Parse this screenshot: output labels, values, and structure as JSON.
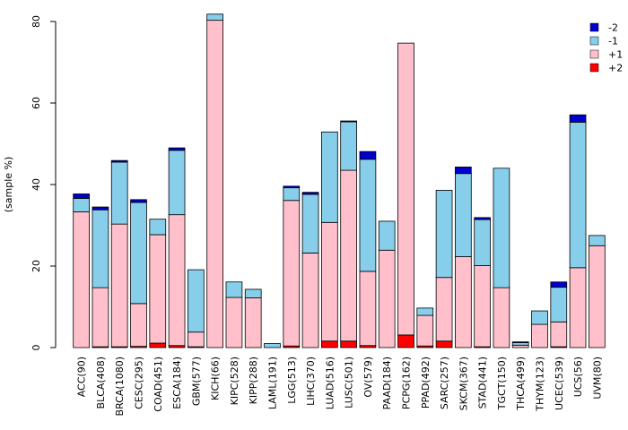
{
  "chart_data": {
    "type": "bar",
    "stacked": true,
    "title": "",
    "xlabel": "",
    "ylabel": "(sample %)",
    "ylim": [
      0,
      80
    ],
    "yticks": [
      0,
      20,
      40,
      60,
      80
    ],
    "grid": false,
    "legend_position": "top-right",
    "categories": [
      "ACC(90)",
      "BLCA(408)",
      "BRCA(1080)",
      "CESC(295)",
      "COAD(451)",
      "ESCA(184)",
      "GBM(577)",
      "KICH(66)",
      "KIPC(528)",
      "KIPP(288)",
      "LAML(191)",
      "LGG(513)",
      "LIHC(370)",
      "LUAD(516)",
      "LUSC(501)",
      "OV(579)",
      "PAAD(184)",
      "PCPG(162)",
      "PPAD(492)",
      "SARC(257)",
      "SKCM(367)",
      "STAD(441)",
      "TGCT(150)",
      "THCA(499)",
      "THYM(123)",
      "UCEC(539)",
      "UCS(56)",
      "UVM(80)"
    ],
    "series": [
      {
        "name": "+2",
        "color": "#ff0000",
        "values": [
          0,
          0.2,
          0.2,
          0.3,
          1.1,
          0.5,
          0.2,
          0,
          0,
          0,
          0,
          0.4,
          0,
          1.6,
          1.6,
          0.5,
          0,
          3.1,
          0.4,
          1.6,
          0,
          0.2,
          0,
          0,
          0,
          0.2,
          0,
          0
        ]
      },
      {
        "name": "+1",
        "color": "#ffc0cb",
        "values": [
          33.3,
          14.5,
          30.1,
          10.5,
          26.6,
          32.1,
          3.6,
          80.3,
          12.3,
          12.2,
          0,
          35.7,
          23.2,
          29.1,
          41.9,
          18.2,
          23.9,
          71.6,
          7.5,
          15.6,
          22.3,
          19.9,
          14.7,
          0.6,
          5.7,
          6.1,
          19.6,
          25.0
        ]
      },
      {
        "name": "-1",
        "color": "#87ceeb",
        "values": [
          3.3,
          19.1,
          15.2,
          24.8,
          3.8,
          15.8,
          15.3,
          1.5,
          3.8,
          2.1,
          1.0,
          3.1,
          14.4,
          22.2,
          11.9,
          27.5,
          7.1,
          0,
          1.8,
          21.4,
          20.4,
          11.3,
          29.3,
          0.6,
          3.3,
          8.5,
          35.7,
          2.5
        ]
      },
      {
        "name": "-2",
        "color": "#0000cd",
        "values": [
          1.1,
          0.7,
          0.4,
          0.7,
          0,
          0.6,
          0,
          0,
          0,
          0,
          0,
          0.4,
          0.5,
          0,
          0.2,
          1.9,
          0,
          0,
          0,
          0,
          1.6,
          0.5,
          0,
          0.2,
          0,
          1.3,
          1.8,
          0
        ]
      }
    ],
    "legend": [
      "-2",
      "-1",
      "+1",
      "+2"
    ]
  }
}
